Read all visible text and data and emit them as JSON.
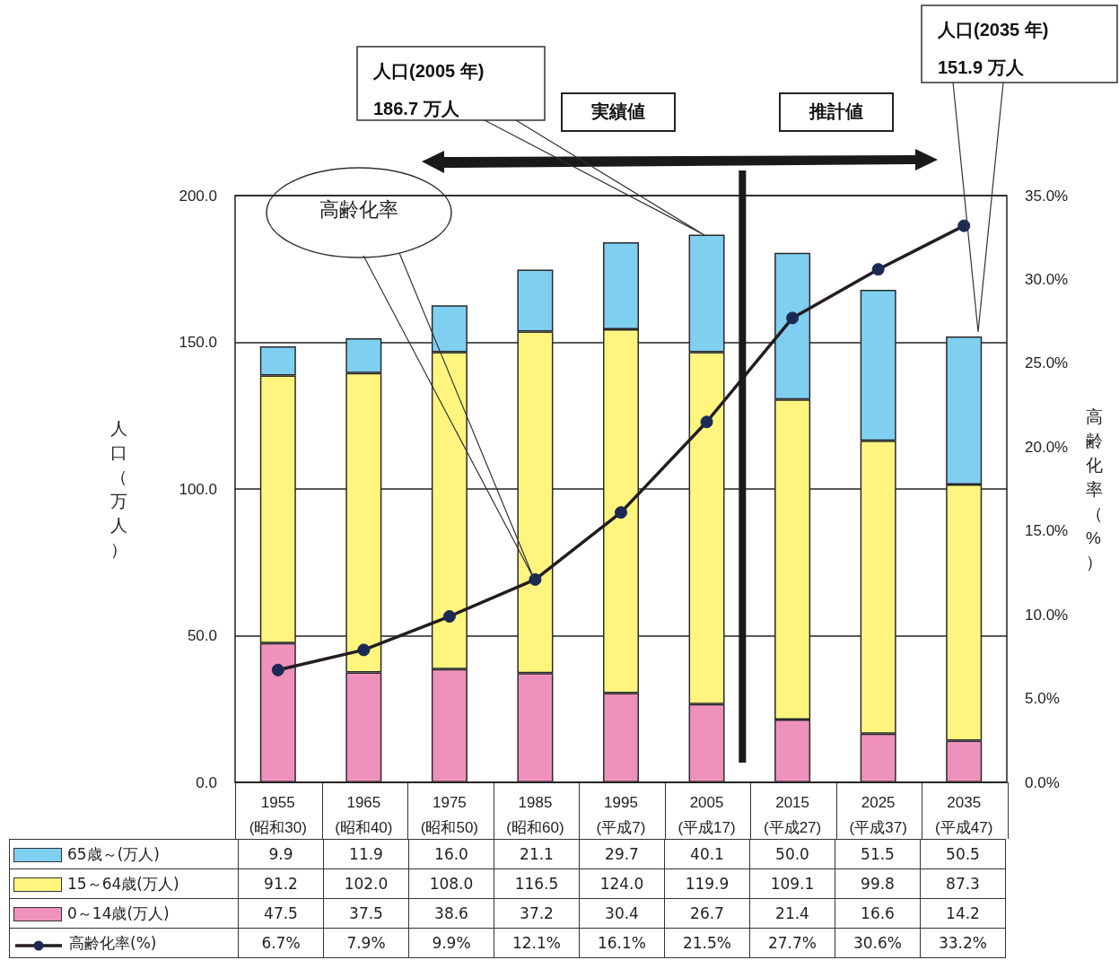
{
  "chart_data": {
    "type": "bar",
    "stacked": true,
    "categories": [
      "1955\n(昭和30)",
      "1965\n(昭和40)",
      "1975\n(昭和50)",
      "1985\n(昭和60)",
      "1995\n(平成7)",
      "2005\n(平成17)",
      "2015\n(平成27)",
      "2025\n(平成37)",
      "2035\n(平成47)"
    ],
    "series": [
      {
        "name": "0～14歳(万人)",
        "color": "#ef92bb",
        "values": [
          47.5,
          37.5,
          38.6,
          37.2,
          30.4,
          26.7,
          21.4,
          16.6,
          14.2
        ],
        "value_labels": [
          "47.5",
          "37.5",
          "38.6",
          "37.2",
          "30.4",
          "26.7",
          "21.4",
          "16.6",
          "14.2"
        ]
      },
      {
        "name": "15～64歳(万人)",
        "color": "#fff57e",
        "values": [
          91.2,
          102.0,
          108.0,
          116.5,
          124.0,
          119.9,
          109.1,
          99.8,
          87.3
        ],
        "value_labels": [
          "91.2",
          "102.0",
          "108.0",
          "116.5",
          "124.0",
          "119.9",
          "109.1",
          "99.8",
          "87.3"
        ]
      },
      {
        "name": "65歳～(万人)",
        "color": "#7fcff1",
        "values": [
          9.9,
          11.9,
          16.0,
          21.1,
          29.7,
          40.1,
          50.0,
          51.5,
          50.5
        ],
        "value_labels": [
          "9.9",
          "11.9",
          "16.0",
          "21.1",
          "29.7",
          "40.1",
          "50.0",
          "51.5",
          "50.5"
        ]
      },
      {
        "name": "高齢化率(%)",
        "type": "line",
        "axis": "y2",
        "color": "#231c22",
        "values": [
          6.7,
          7.9,
          9.9,
          12.1,
          16.1,
          21.5,
          27.7,
          30.6,
          33.2
        ],
        "value_labels": [
          "6.7%",
          "7.9%",
          "9.9%",
          "12.1%",
          "16.1%",
          "21.5%",
          "27.7%",
          "30.6%",
          "33.2%"
        ]
      }
    ],
    "ylabel": "人口（万人）",
    "y2label": "高齢化率（%）",
    "ylim": [
      0,
      200
    ],
    "yticks": [
      {
        "value": 0,
        "label": "0.0"
      },
      {
        "value": 50,
        "label": "50.0"
      },
      {
        "value": 100,
        "label": "100.0"
      },
      {
        "value": 150,
        "label": "150.0"
      },
      {
        "value": 200,
        "label": "200.0"
      }
    ],
    "y2lim": [
      0,
      35
    ],
    "y2ticks": [
      {
        "value": 0,
        "label": "0.0%"
      },
      {
        "value": 5,
        "label": "5.0%"
      },
      {
        "value": 10,
        "label": "10.0%"
      },
      {
        "value": 15,
        "label": "15.0%"
      },
      {
        "value": 20,
        "label": "20.0%"
      },
      {
        "value": 25,
        "label": "25.0%"
      },
      {
        "value": 30,
        "label": "30.0%"
      },
      {
        "value": 35,
        "label": "35.0%"
      }
    ],
    "annotations": [
      "人口(2005 年)\n186.7 万人",
      "人口(2035 年)\n151.9 万人",
      "高齢化率",
      "実績値",
      "推計値"
    ],
    "grid": "y",
    "legend": "bottom",
    "marker": "circle",
    "line_style": "solid"
  }
}
